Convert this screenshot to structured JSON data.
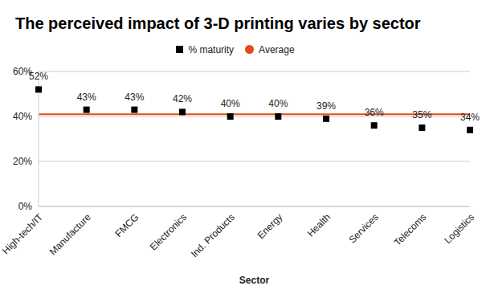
{
  "chart_data": {
    "type": "scatter",
    "title": "The perceived impact of 3-D printing varies by sector",
    "x_label": "Sector",
    "categories": [
      "High-tech/IT",
      "Manufacture",
      "FMCG",
      "Electronics",
      "Ind. Products",
      "Energy",
      "Health",
      "Services",
      "Telecoms",
      "Logistics"
    ],
    "series": [
      {
        "name": "% maturity",
        "color": "#000000",
        "marker": "square",
        "values": [
          52,
          43,
          43,
          42,
          40,
          40,
          39,
          36,
          35,
          34
        ],
        "value_labels": [
          "52%",
          "43%",
          "43%",
          "42%",
          "40%",
          "40%",
          "39%",
          "36%",
          "35%",
          "34%"
        ]
      }
    ],
    "average": {
      "name": "Average",
      "value": 41,
      "color": "#e64a19",
      "marker": "circle"
    },
    "ylim": [
      0,
      60
    ],
    "yticks": [
      {
        "value": 0,
        "label": "0%"
      },
      {
        "value": 20,
        "label": "20%"
      },
      {
        "value": 40,
        "label": "40%"
      },
      {
        "value": 60,
        "label": "60%"
      }
    ],
    "data_labels": true,
    "grid": true,
    "legend": "top"
  }
}
